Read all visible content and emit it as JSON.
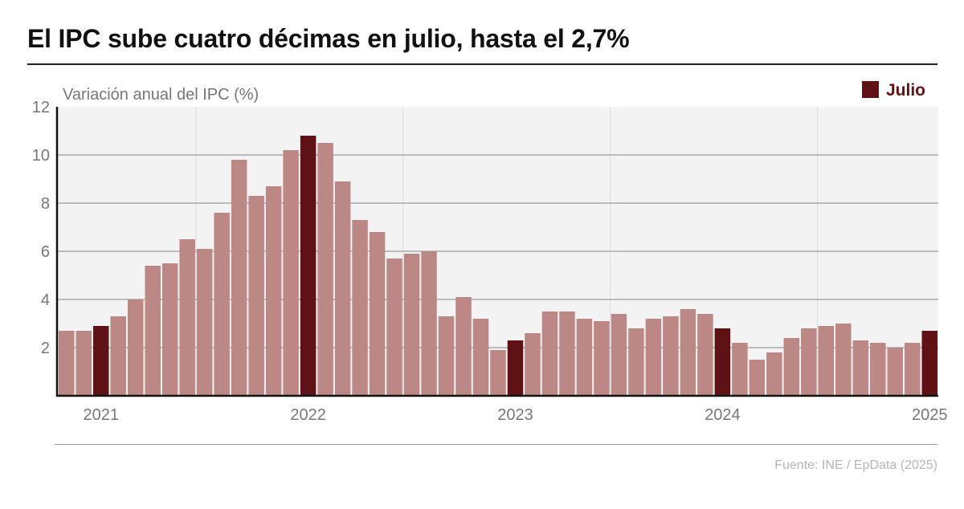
{
  "title": "El IPC sube cuatro décimas en julio, hasta el 2,7%",
  "source": "Fuente: INE / EpData (2025)",
  "colors": {
    "regular": "#bc8885",
    "highlight": "#5e1216",
    "plot_bg": "#f3f3f3",
    "grid": "#9a9a9a",
    "text": "#777777"
  },
  "chart_data": {
    "type": "bar",
    "title": "El IPC sube cuatro décimas en julio, hasta el 2,7%",
    "ylabel": "Variación anual del IPC (%)",
    "ylim": [
      0,
      12
    ],
    "yticks": [
      2,
      4,
      6,
      8,
      10,
      12
    ],
    "year_labels": [
      "2021",
      "2022",
      "2023",
      "2024",
      "2025"
    ],
    "legend": {
      "label": "Julio",
      "placement": "top-right"
    },
    "grid": true,
    "series": [
      {
        "name": "Julio",
        "months": [
          "2021-05",
          "2021-06",
          "2021-07",
          "2021-08",
          "2021-09",
          "2021-10",
          "2021-11",
          "2021-12",
          "2022-01",
          "2022-02",
          "2022-03",
          "2022-04",
          "2022-05",
          "2022-06",
          "2022-07",
          "2022-08",
          "2022-09",
          "2022-10",
          "2022-11",
          "2022-12",
          "2023-01",
          "2023-02",
          "2023-03",
          "2023-04",
          "2023-05",
          "2023-06",
          "2023-07",
          "2023-08",
          "2023-09",
          "2023-10",
          "2023-11",
          "2023-12",
          "2024-01",
          "2024-02",
          "2024-03",
          "2024-04",
          "2024-05",
          "2024-06",
          "2024-07",
          "2024-08",
          "2024-09",
          "2024-10",
          "2024-11",
          "2024-12",
          "2025-01",
          "2025-02",
          "2025-03",
          "2025-04",
          "2025-05",
          "2025-06",
          "2025-07"
        ],
        "values": [
          2.7,
          2.7,
          2.9,
          3.3,
          4.0,
          5.4,
          5.5,
          6.5,
          6.1,
          7.6,
          9.8,
          8.3,
          8.7,
          10.2,
          10.8,
          10.5,
          8.9,
          7.3,
          6.8,
          5.7,
          5.9,
          6.0,
          3.3,
          4.1,
          3.2,
          1.9,
          2.3,
          2.6,
          3.5,
          3.5,
          3.2,
          3.1,
          3.4,
          2.8,
          3.2,
          3.3,
          3.6,
          3.4,
          2.8,
          2.2,
          1.5,
          1.8,
          2.4,
          2.8,
          2.9,
          3.0,
          2.3,
          2.2,
          2.0,
          2.2,
          2.7
        ],
        "highlight": [
          false,
          false,
          true,
          false,
          false,
          false,
          false,
          false,
          false,
          false,
          false,
          false,
          false,
          false,
          true,
          false,
          false,
          false,
          false,
          false,
          false,
          false,
          false,
          false,
          false,
          false,
          true,
          false,
          false,
          false,
          false,
          false,
          false,
          false,
          false,
          false,
          false,
          false,
          true,
          false,
          false,
          false,
          false,
          false,
          false,
          false,
          false,
          false,
          false,
          false,
          true
        ]
      }
    ]
  }
}
